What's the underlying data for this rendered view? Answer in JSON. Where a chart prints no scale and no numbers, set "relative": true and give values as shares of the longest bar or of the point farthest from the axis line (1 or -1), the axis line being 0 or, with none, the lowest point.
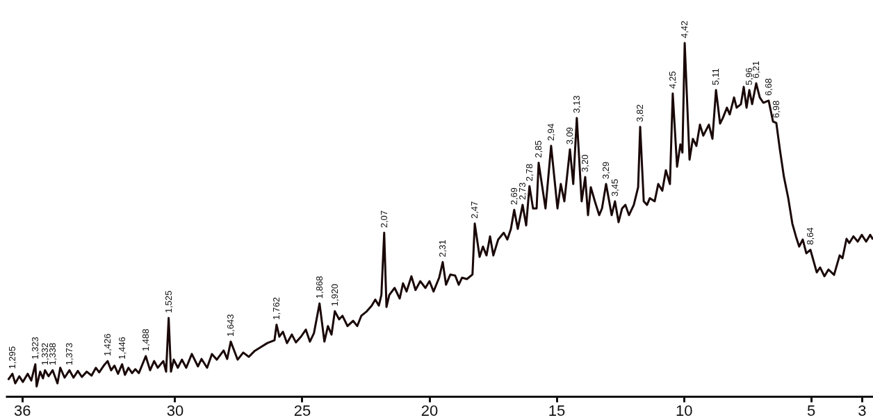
{
  "chart_data": {
    "type": "line",
    "relative": true,
    "xlim": [
      36.65,
      2.56
    ],
    "xticks": [
      36,
      30,
      25,
      20,
      15,
      10,
      5,
      3
    ],
    "x": [
      36.55,
      36.38,
      36.27,
      36.11,
      35.97,
      35.78,
      35.64,
      35.48,
      35.43,
      35.29,
      35.18,
      35.1,
      34.96,
      34.8,
      34.61,
      34.5,
      34.33,
      34.14,
      33.98,
      33.81,
      33.65,
      33.46,
      33.27,
      33.1,
      32.97,
      32.77,
      32.64,
      32.5,
      32.37,
      32.23,
      32.07,
      31.96,
      31.82,
      31.68,
      31.55,
      31.41,
      31.14,
      30.97,
      30.81,
      30.67,
      30.45,
      30.34,
      30.24,
      30.15,
      30.04,
      29.88,
      29.72,
      29.55,
      29.33,
      29.09,
      28.95,
      28.73,
      28.54,
      28.35,
      28.08,
      27.94,
      27.8,
      27.53,
      27.31,
      27.09,
      26.87,
      26.63,
      26.36,
      26.08,
      26.0,
      25.89,
      25.75,
      25.59,
      25.4,
      25.24,
      25.04,
      24.85,
      24.69,
      24.53,
      24.31,
      24.12,
      23.98,
      23.84,
      23.71,
      23.54,
      23.41,
      23.21,
      22.99,
      22.83,
      22.67,
      22.45,
      22.26,
      22.12,
      21.98,
      21.88,
      21.77,
      21.68,
      21.57,
      21.36,
      21.16,
      21.03,
      20.89,
      20.7,
      20.54,
      20.35,
      20.15,
      19.99,
      19.83,
      19.61,
      19.47,
      19.34,
      19.17,
      18.98,
      18.84,
      18.71,
      18.52,
      18.3,
      18.21,
      18.02,
      17.89,
      17.75,
      17.61,
      17.48,
      17.29,
      17.07,
      16.93,
      16.79,
      16.66,
      16.52,
      16.33,
      16.19,
      16.06,
      15.92,
      15.78,
      15.7,
      15.43,
      15.21,
      14.96,
      14.83,
      14.69,
      14.47,
      14.34,
      14.2,
      14.01,
      13.87,
      13.76,
      13.65,
      13.49,
      13.32,
      13.21,
      13.05,
      12.83,
      12.7,
      12.56,
      12.42,
      12.29,
      12.15,
      11.96,
      11.79,
      11.71,
      11.57,
      11.44,
      11.33,
      11.14,
      11.0,
      10.84,
      10.7,
      10.54,
      10.43,
      10.26,
      10.13,
      10.05,
      9.96,
      9.77,
      9.64,
      9.5,
      9.36,
      9.23,
      9.01,
      8.87,
      8.73,
      8.57,
      8.46,
      8.3,
      8.19,
      8.02,
      7.92,
      7.75,
      7.64,
      7.53,
      7.42,
      7.31,
      7.15,
      7.01,
      6.87,
      6.66,
      6.49,
      6.36,
      6.22,
      6.06,
      5.89,
      5.73,
      5.59,
      5.46,
      5.32,
      5.18,
      5.02,
      4.77,
      4.64,
      4.47,
      4.31,
      4.09,
      3.87,
      3.76,
      3.6,
      3.49,
      3.33,
      3.16,
      3.0,
      2.83,
      2.67,
      2.56
    ],
    "series": [
      {
        "color": "#1a0808",
        "values": [
          0.047,
          0.064,
          0.037,
          0.057,
          0.041,
          0.064,
          0.045,
          0.091,
          0.028,
          0.07,
          0.051,
          0.074,
          0.057,
          0.074,
          0.037,
          0.081,
          0.053,
          0.074,
          0.053,
          0.072,
          0.055,
          0.07,
          0.059,
          0.081,
          0.068,
          0.089,
          0.1,
          0.074,
          0.087,
          0.064,
          0.091,
          0.061,
          0.081,
          0.066,
          0.077,
          0.066,
          0.114,
          0.074,
          0.1,
          0.081,
          0.1,
          0.07,
          0.222,
          0.07,
          0.104,
          0.081,
          0.104,
          0.081,
          0.12,
          0.085,
          0.106,
          0.081,
          0.12,
          0.104,
          0.13,
          0.106,
          0.155,
          0.104,
          0.124,
          0.112,
          0.128,
          0.139,
          0.151,
          0.159,
          0.203,
          0.169,
          0.183,
          0.151,
          0.175,
          0.153,
          0.169,
          0.189,
          0.155,
          0.179,
          0.263,
          0.155,
          0.199,
          0.175,
          0.241,
          0.218,
          0.228,
          0.199,
          0.214,
          0.199,
          0.228,
          0.241,
          0.257,
          0.274,
          0.257,
          0.287,
          0.463,
          0.253,
          0.287,
          0.307,
          0.277,
          0.32,
          0.297,
          0.34,
          0.301,
          0.326,
          0.307,
          0.326,
          0.297,
          0.336,
          0.38,
          0.316,
          0.345,
          0.342,
          0.316,
          0.336,
          0.332,
          0.345,
          0.489,
          0.395,
          0.424,
          0.399,
          0.453,
          0.399,
          0.444,
          0.463,
          0.444,
          0.474,
          0.528,
          0.474,
          0.542,
          0.484,
          0.595,
          0.532,
          0.532,
          0.661,
          0.532,
          0.709,
          0.532,
          0.601,
          0.552,
          0.699,
          0.601,
          0.788,
          0.552,
          0.621,
          0.513,
          0.592,
          0.552,
          0.513,
          0.532,
          0.601,
          0.513,
          0.552,
          0.493,
          0.532,
          0.542,
          0.513,
          0.542,
          0.592,
          0.763,
          0.552,
          0.542,
          0.561,
          0.552,
          0.601,
          0.582,
          0.64,
          0.601,
          0.857,
          0.65,
          0.713,
          0.69,
          1,
          0.67,
          0.729,
          0.709,
          0.769,
          0.738,
          0.769,
          0.729,
          0.867,
          0.772,
          0.788,
          0.817,
          0.798,
          0.846,
          0.817,
          0.827,
          0.876,
          0.817,
          0.867,
          0.827,
          0.886,
          0.846,
          0.831,
          0.837,
          0.778,
          0.774,
          0.699,
          0.621,
          0.561,
          0.489,
          0.453,
          0.424,
          0.444,
          0.405,
          0.415,
          0.351,
          0.365,
          0.34,
          0.359,
          0.344,
          0.399,
          0.391,
          0.446,
          0.434,
          0.453,
          0.438,
          0.457,
          0.438,
          0.457,
          0.444
        ]
      }
    ],
    "annotations": [
      {
        "text": "1,295",
        "x": 36.38,
        "y": 0.064
      },
      {
        "text": "1,323",
        "x": 35.48,
        "y": 0.091
      },
      {
        "text": "1,332",
        "x": 35.1,
        "y": 0.074
      },
      {
        "text": "1,338",
        "x": 34.8,
        "y": 0.074
      },
      {
        "text": "1,373",
        "x": 34.14,
        "y": 0.074
      },
      {
        "text": "1,426",
        "x": 32.64,
        "y": 0.1
      },
      {
        "text": "1,446",
        "x": 32.07,
        "y": 0.091
      },
      {
        "text": "1,488",
        "x": 31.14,
        "y": 0.114
      },
      {
        "text": "1,525",
        "x": 30.24,
        "y": 0.222
      },
      {
        "text": "1,643",
        "x": 27.8,
        "y": 0.155
      },
      {
        "text": "1,762",
        "x": 26.0,
        "y": 0.203
      },
      {
        "text": "1,868",
        "x": 24.31,
        "y": 0.263
      },
      {
        "text": "1,920",
        "x": 23.71,
        "y": 0.241
      },
      {
        "text": "2,07",
        "x": 21.77,
        "y": 0.463
      },
      {
        "text": "2,31",
        "x": 19.47,
        "y": 0.38
      },
      {
        "text": "2,47",
        "x": 18.21,
        "y": 0.489
      },
      {
        "text": "2,69",
        "x": 16.66,
        "y": 0.528
      },
      {
        "text": "2,73",
        "x": 16.33,
        "y": 0.542
      },
      {
        "text": "2,78",
        "x": 16.06,
        "y": 0.595
      },
      {
        "text": "2,85",
        "x": 15.7,
        "y": 0.661
      },
      {
        "text": "2,94",
        "x": 15.21,
        "y": 0.709
      },
      {
        "text": "3,09",
        "x": 14.47,
        "y": 0.699
      },
      {
        "text": "3,13",
        "x": 14.2,
        "y": 0.788
      },
      {
        "text": "3,20",
        "x": 13.87,
        "y": 0.621
      },
      {
        "text": "3,29",
        "x": 13.05,
        "y": 0.601
      },
      {
        "text": "3,45",
        "x": 12.7,
        "y": 0.552
      },
      {
        "text": "3,82",
        "x": 11.71,
        "y": 0.763
      },
      {
        "text": "4,25",
        "x": 10.43,
        "y": 0.857
      },
      {
        "text": "4,42",
        "x": 9.96,
        "y": 1
      },
      {
        "text": "5,11",
        "x": 8.73,
        "y": 0.867
      },
      {
        "text": "5,96",
        "x": 7.42,
        "y": 0.867
      },
      {
        "text": "6,21",
        "x": 7.15,
        "y": 0.886
      },
      {
        "text": "6,68",
        "x": 6.66,
        "y": 0.837
      },
      {
        "text": "6,98",
        "x": 6.36,
        "y": 0.774
      },
      {
        "text": "8,64",
        "x": 5.02,
        "y": 0.415
      }
    ]
  }
}
